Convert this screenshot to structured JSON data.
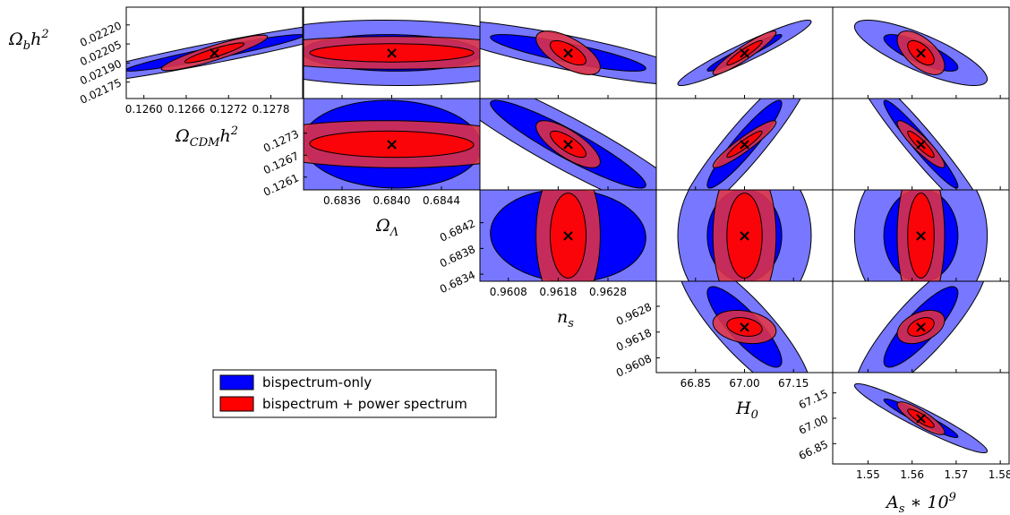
{
  "chart_data": {
    "type": "triangle-contour",
    "legend": {
      "placement": "left-middle",
      "entries": [
        {
          "key": "blue",
          "label": "bispectrum-only"
        },
        {
          "key": "red",
          "label": "bispectrum + power spectrum"
        }
      ]
    },
    "colors": {
      "blue_outer": "#7777ff",
      "blue_inner": "#0000ff",
      "red_outer": "#e8343f",
      "red_inner": "#ff0000",
      "frame": "#000000"
    },
    "params": {
      "Ob": {
        "center": 0.02198,
        "range": [
          0.02162,
          0.02234
        ]
      },
      "Oc": {
        "center": 0.127,
        "range": [
          0.12575,
          0.12825
        ]
      },
      "OL": {
        "center": 0.684,
        "range": [
          0.68329,
          0.68471
        ]
      },
      "ns": {
        "center": 0.962,
        "range": [
          0.96023,
          0.96377
        ]
      },
      "H0": {
        "center": 67.0,
        "range": [
          66.73,
          67.27
        ]
      },
      "As": {
        "center": 1.562,
        "range": [
          1.542,
          1.582
        ]
      }
    },
    "columns": [
      {
        "param": "Oc",
        "ticks": [
          {
            "v": 0.126,
            "label": "0.1260"
          },
          {
            "v": 0.1266,
            "label": "0.1266"
          },
          {
            "v": 0.1272,
            "label": "0.1272"
          },
          {
            "v": 0.1278,
            "label": "0.1278"
          }
        ],
        "label_parts": [
          {
            "t": "Ω",
            "sub": "CDM"
          },
          {
            "t": "h",
            "sup": "2"
          }
        ]
      },
      {
        "param": "OL",
        "ticks": [
          {
            "v": 0.6836,
            "label": "0.6836"
          },
          {
            "v": 0.684,
            "label": "0.6840"
          },
          {
            "v": 0.6844,
            "label": "0.6844"
          }
        ],
        "label_parts": [
          {
            "t": "Ω",
            "sub": "Λ"
          }
        ]
      },
      {
        "param": "ns",
        "ticks": [
          {
            "v": 0.9608,
            "label": "0.9608"
          },
          {
            "v": 0.9618,
            "label": "0.9618"
          },
          {
            "v": 0.9628,
            "label": "0.9628"
          }
        ],
        "label_parts": [
          {
            "t": "n",
            "sub": "s"
          }
        ]
      },
      {
        "param": "H0",
        "ticks": [
          {
            "v": 66.85,
            "label": "66.85"
          },
          {
            "v": 67.0,
            "label": "67.00"
          },
          {
            "v": 67.15,
            "label": "67.15"
          }
        ],
        "label_parts": [
          {
            "t": "H",
            "sub": "0"
          }
        ]
      },
      {
        "param": "As",
        "ticks": [
          {
            "v": 1.55,
            "label": "1.55"
          },
          {
            "v": 1.56,
            "label": "1.56"
          },
          {
            "v": 1.57,
            "label": "1.57"
          },
          {
            "v": 1.58,
            "label": "1.58"
          }
        ],
        "label_parts": [
          {
            "t": "A",
            "sub": "s"
          },
          {
            "t": " ∗ 10",
            "sup": "9"
          }
        ]
      }
    ],
    "rows": [
      {
        "param": "Ob",
        "ticks": [
          {
            "v": 0.02175,
            "label": "0.02175"
          },
          {
            "v": 0.0219,
            "label": "0.02190"
          },
          {
            "v": 0.02205,
            "label": "0.02205"
          },
          {
            "v": 0.0222,
            "label": "0.02220"
          }
        ],
        "label_parts": [
          {
            "t": "Ω",
            "sub": "b"
          },
          {
            "t": "h",
            "sup": "2"
          }
        ]
      },
      {
        "param": "Oc",
        "ticks": [
          {
            "v": 0.1261,
            "label": "0.1261"
          },
          {
            "v": 0.1267,
            "label": "0.1267"
          },
          {
            "v": 0.1273,
            "label": "0.1273"
          }
        ]
      },
      {
        "param": "OL",
        "ticks": [
          {
            "v": 0.6834,
            "label": "0.6834"
          },
          {
            "v": 0.6838,
            "label": "0.6838"
          },
          {
            "v": 0.6842,
            "label": "0.6842"
          }
        ]
      },
      {
        "param": "ns",
        "ticks": [
          {
            "v": 0.9608,
            "label": "0.9608"
          },
          {
            "v": 0.9618,
            "label": "0.9618"
          },
          {
            "v": 0.9628,
            "label": "0.9628"
          }
        ]
      },
      {
        "param": "H0",
        "ticks": [
          {
            "v": 66.85,
            "label": "66.85"
          },
          {
            "v": 67.0,
            "label": "67.00"
          },
          {
            "v": 67.15,
            "label": "67.15"
          }
        ]
      }
    ],
    "fiducial_marker": "×",
    "panels": [
      {
        "row": 0,
        "col": 0,
        "blue": {
          "sx": 0.00105,
          "sy": 0.00012,
          "rho": 0.95
        },
        "red": {
          "sx": 0.00035,
          "sy": 6.5e-05,
          "rho": 0.9
        }
      },
      {
        "row": 0,
        "col": 1,
        "blue": {
          "sx": 0.0006,
          "sy": 0.00012,
          "rho": -0.05
        },
        "red": {
          "sx": 0.00055,
          "sy": 6e-05,
          "rho": 0.0
        }
      },
      {
        "row": 0,
        "col": 2,
        "blue": {
          "sx": 0.0013,
          "sy": 0.00012,
          "rho": -0.85
        },
        "red": {
          "sx": 0.0003,
          "sy": 8e-05,
          "rho": -0.65
        }
      },
      {
        "row": 0,
        "col": 3,
        "blue": {
          "sx": 0.095,
          "sy": 0.00012,
          "rho": 0.95
        },
        "red": {
          "sx": 0.045,
          "sy": 8e-05,
          "rho": 0.93
        }
      },
      {
        "row": 0,
        "col": 4,
        "blue": {
          "sx": 0.007,
          "sy": 0.00012,
          "rho": -0.8
        },
        "red": {
          "sx": 0.0025,
          "sy": 8e-05,
          "rho": -0.6
        }
      },
      {
        "row": 1,
        "col": 1,
        "blue": {
          "sx": 0.0006,
          "sy": 0.001,
          "rho": -0.05
        },
        "red": {
          "sx": 0.00055,
          "sy": 0.0003,
          "rho": -0.05
        }
      },
      {
        "row": 1,
        "col": 2,
        "blue": {
          "sx": 0.0013,
          "sy": 0.001,
          "rho": -0.93
        },
        "red": {
          "sx": 0.0003,
          "sy": 0.0003,
          "rho": -0.75
        }
      },
      {
        "row": 1,
        "col": 3,
        "blue": {
          "sx": 0.095,
          "sy": 0.001,
          "rho": 0.93
        },
        "red": {
          "sx": 0.045,
          "sy": 0.0003,
          "rho": 0.93
        }
      },
      {
        "row": 1,
        "col": 4,
        "blue": {
          "sx": 0.007,
          "sy": 0.001,
          "rho": -0.96
        },
        "red": {
          "sx": 0.0025,
          "sy": 0.0003,
          "rho": -0.9
        }
      },
      {
        "row": 2,
        "col": 2,
        "blue": {
          "sx": 0.0013,
          "sy": 0.0006,
          "rho": -0.05
        },
        "red": {
          "sx": 0.0003,
          "sy": 0.00055,
          "rho": 0.0
        }
      },
      {
        "row": 2,
        "col": 3,
        "blue": {
          "sx": 0.095,
          "sy": 0.0006,
          "rho": 0.0
        },
        "red": {
          "sx": 0.045,
          "sy": 0.00055,
          "rho": 0.0
        }
      },
      {
        "row": 2,
        "col": 4,
        "blue": {
          "sx": 0.007,
          "sy": 0.0006,
          "rho": 0.0
        },
        "red": {
          "sx": 0.0025,
          "sy": 0.00055,
          "rho": 0.0
        }
      },
      {
        "row": 3,
        "col": 3,
        "blue": {
          "sx": 0.095,
          "sy": 0.0013,
          "rho": -0.85
        },
        "red": {
          "sx": 0.045,
          "sy": 0.0003,
          "rho": -0.25
        }
      },
      {
        "row": 3,
        "col": 4,
        "blue": {
          "sx": 0.007,
          "sy": 0.0013,
          "rho": 0.85
        },
        "red": {
          "sx": 0.0025,
          "sy": 0.0003,
          "rho": 0.4
        }
      },
      {
        "row": 4,
        "col": 4,
        "blue": {
          "sx": 0.007,
          "sy": 0.095,
          "rho": -0.95
        },
        "red": {
          "sx": 0.0025,
          "sy": 0.045,
          "rho": -0.85
        }
      }
    ]
  }
}
